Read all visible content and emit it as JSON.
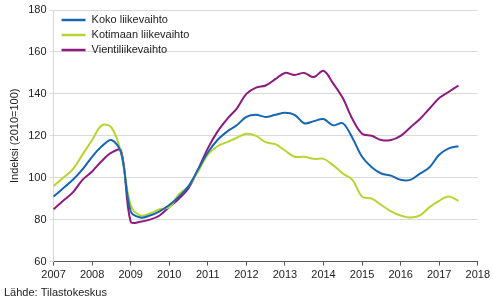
{
  "chart_data": {
    "type": "line",
    "y_label": "Indeksi (2010=100)",
    "source": "Lähde: Tilastokeskus",
    "categories": [
      "2007",
      null,
      null,
      null,
      "2008",
      null,
      null,
      null,
      "2009",
      null,
      null,
      null,
      "2010",
      null,
      null,
      null,
      "2011",
      null,
      null,
      null,
      "2012",
      null,
      null,
      null,
      "2013",
      null,
      null,
      null,
      "2014",
      null,
      null,
      null,
      "2015",
      null,
      null,
      null,
      "2016",
      null,
      null,
      null,
      "2017",
      null,
      null,
      null,
      "2018"
    ],
    "series": [
      {
        "name": "Koko liikevaihto",
        "color": "#1667b0",
        "values": [
          91,
          95,
          99,
          104,
          110,
          115,
          118,
          112,
          84,
          81,
          82,
          84,
          87,
          91,
          96,
          104,
          112,
          118,
          122,
          125,
          129,
          130,
          129,
          130,
          131,
          130,
          126,
          127,
          128,
          125,
          126,
          119,
          110,
          105,
          102,
          101,
          99,
          99,
          102,
          105,
          111,
          114,
          115,
          null,
          null
        ]
      },
      {
        "name": "Kotimaan liikevaihto",
        "color": "#b8d432",
        "values": [
          96,
          100,
          104,
          111,
          118,
          125,
          124,
          112,
          87,
          82,
          83,
          85,
          86,
          92,
          96,
          103,
          111,
          115,
          117,
          119,
          121,
          120,
          117,
          116,
          113,
          110,
          110,
          109,
          109,
          106,
          102,
          99,
          91,
          90,
          87,
          84,
          82,
          81,
          82,
          86,
          89,
          91,
          89,
          null,
          null
        ]
      },
      {
        "name": "Vientiliikevaihto",
        "color": "#8c1b7d",
        "values": [
          85,
          89,
          93,
          99,
          103,
          108,
          112,
          113,
          79,
          79,
          80,
          82,
          86,
          90,
          95,
          104,
          114,
          122,
          128,
          133,
          140,
          143,
          144,
          147,
          150,
          149,
          150,
          148,
          151,
          145,
          138,
          128,
          121,
          120,
          118,
          118,
          120,
          124,
          128,
          133,
          138,
          141,
          144,
          null,
          null
        ]
      }
    ],
    "ylim": [
      60,
      180
    ],
    "yticks": [
      60,
      80,
      100,
      120,
      140,
      160,
      180
    ],
    "grid": true,
    "legend": "top-left"
  }
}
